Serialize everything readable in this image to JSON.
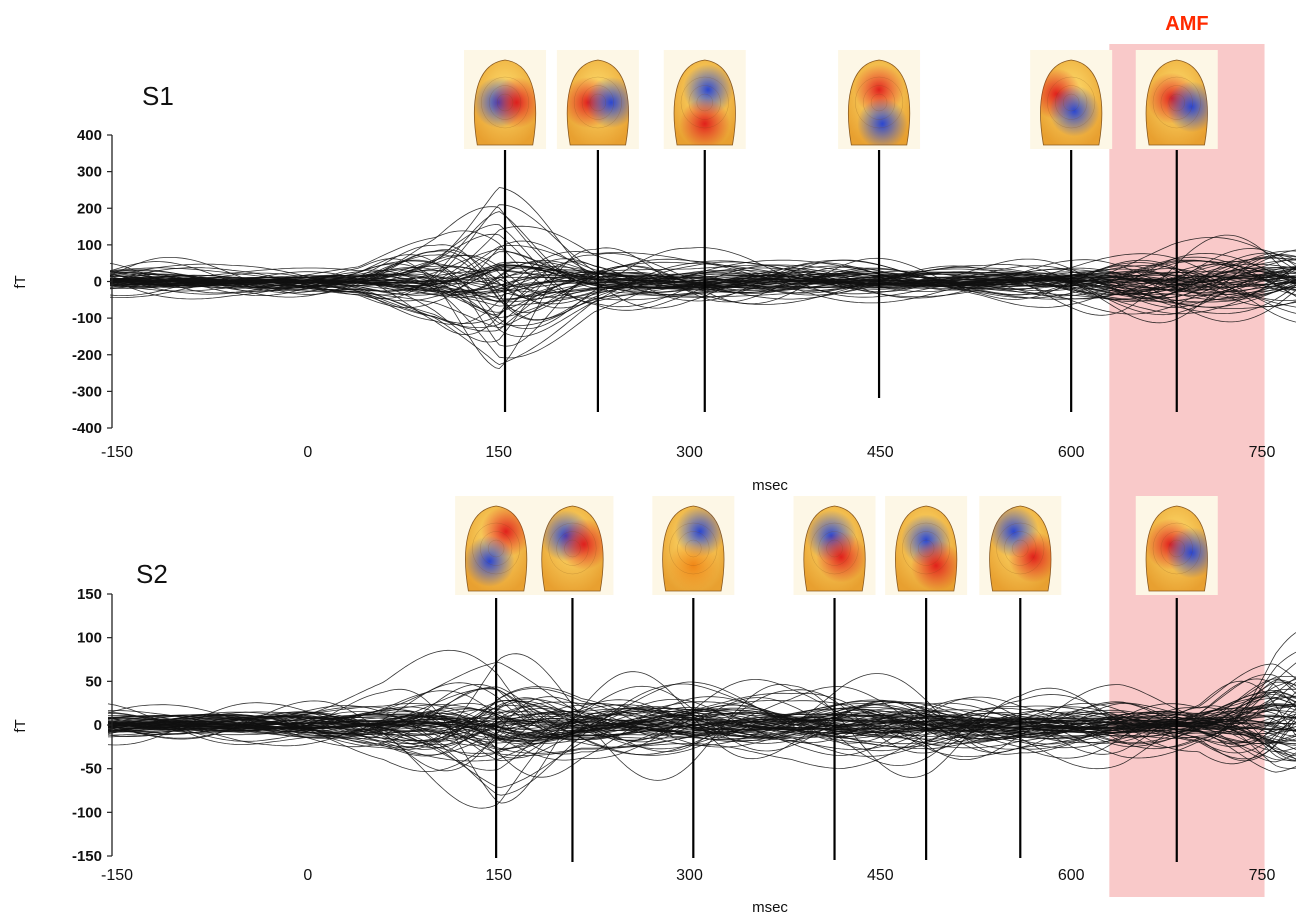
{
  "highlight": {
    "label": "AMF",
    "label_color": "#ff2a00",
    "fill_color": "#f9c9c9",
    "x_range": [
      630,
      752
    ]
  },
  "chart_data": [
    {
      "type": "line",
      "panel_label": "S1",
      "xlabel": "msec",
      "ylabel": "fT",
      "xlim": [
        -150,
        790
      ],
      "ylim": [
        -400,
        400
      ],
      "x_ticks": [
        -150,
        0,
        150,
        300,
        450,
        600,
        750
      ],
      "y_ticks": [
        400,
        300,
        200,
        100,
        0,
        -100,
        -200,
        -300,
        -400
      ],
      "markers": [
        155,
        228,
        312,
        449,
        600,
        683
      ],
      "topomaps": [
        {
          "name": "head-rear-view",
          "blobs": [
            [
              "#2a4fd6",
              -0.2,
              0.5
            ],
            [
              "#e02020",
              0.35,
              0.5
            ]
          ]
        },
        {
          "name": "head-rear-view",
          "blobs": [
            [
              "#e02020",
              -0.3,
              0.5
            ],
            [
              "#2a4fd6",
              0.4,
              0.5
            ]
          ]
        },
        {
          "name": "head-side-view",
          "blobs": [
            [
              "#2a4fd6",
              0.1,
              0.35
            ],
            [
              "#e02020",
              0.0,
              0.75
            ]
          ]
        },
        {
          "name": "head-side-view",
          "blobs": [
            [
              "#e02020",
              0.0,
              0.35
            ],
            [
              "#2a4fd6",
              0.1,
              0.75
            ]
          ]
        },
        {
          "name": "head-side-view",
          "blobs": [
            [
              "#e02020",
              -0.45,
              0.4
            ],
            [
              "#2a4fd6",
              0.1,
              0.6
            ]
          ]
        },
        {
          "name": "head-front-view",
          "blobs": [
            [
              "#e02020",
              -0.15,
              0.45
            ],
            [
              "#2a4fd6",
              0.45,
              0.55
            ]
          ]
        }
      ]
    },
    {
      "type": "line",
      "panel_label": "S2",
      "xlabel": "msec",
      "ylabel": "fT",
      "xlim": [
        -150,
        790
      ],
      "ylim": [
        -150,
        150
      ],
      "x_ticks": [
        -150,
        0,
        150,
        300,
        450,
        600,
        750
      ],
      "y_ticks": [
        150,
        100,
        50,
        0,
        -50,
        -100,
        -150
      ],
      "markers": [
        148,
        208,
        303,
        414,
        486,
        560,
        683
      ],
      "topomaps": [
        {
          "name": "head-rear-view",
          "blobs": [
            [
              "#e02020",
              0.3,
              0.3
            ],
            [
              "#2a4fd6",
              -0.2,
              0.65
            ]
          ]
        },
        {
          "name": "head-rear-view",
          "blobs": [
            [
              "#2a4fd6",
              -0.2,
              0.35
            ],
            [
              "#e02020",
              0.35,
              0.45
            ]
          ]
        },
        {
          "name": "head-side-view",
          "blobs": [
            [
              "#2a4fd6",
              0.2,
              0.3
            ],
            [
              "#f0a020",
              0.0,
              0.7
            ]
          ]
        },
        {
          "name": "head-side-view",
          "blobs": [
            [
              "#2a4fd6",
              -0.1,
              0.35
            ],
            [
              "#e02020",
              0.2,
              0.6
            ]
          ]
        },
        {
          "name": "head-side-view",
          "blobs": [
            [
              "#2a4fd6",
              0.0,
              0.4
            ],
            [
              "#e02020",
              0.3,
              0.7
            ]
          ]
        },
        {
          "name": "head-side-view",
          "blobs": [
            [
              "#2a4fd6",
              -0.2,
              0.3
            ],
            [
              "#e02020",
              0.4,
              0.6
            ]
          ]
        },
        {
          "name": "head-front-view",
          "blobs": [
            [
              "#e02020",
              -0.2,
              0.45
            ],
            [
              "#2a4fd6",
              0.45,
              0.55
            ]
          ]
        }
      ]
    }
  ]
}
